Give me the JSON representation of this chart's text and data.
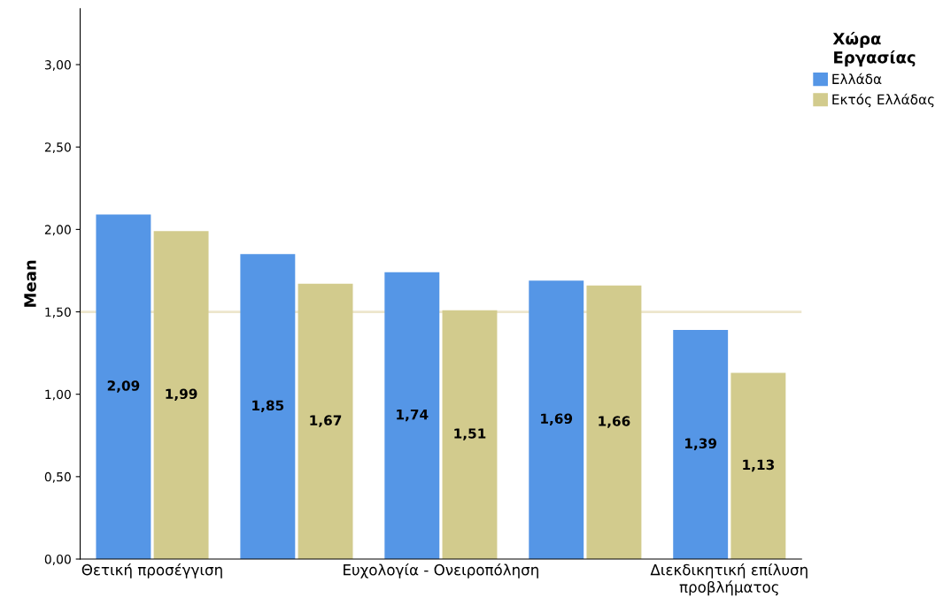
{
  "chart_data": {
    "type": "bar",
    "ylabel": "Mean",
    "legend_title": "Χώρα Εργασίας",
    "categories": [
      "Θετική προσέγγιση",
      null,
      "Ευχολογία - Ονειροπόληση",
      null,
      "Διεκδικητική επίλυση προβλήματος"
    ],
    "series": [
      {
        "name": "Ελλάδα",
        "color": "#5596e6",
        "values": [
          2.09,
          1.85,
          1.74,
          1.69,
          1.39
        ],
        "value_labels": [
          "2,09",
          "1,85",
          "1,74",
          "1,69",
          "1,39"
        ]
      },
      {
        "name": "Εκτός Ελλάδας",
        "color": "#d2cb8d",
        "values": [
          1.99,
          1.67,
          1.51,
          1.66,
          1.13
        ],
        "value_labels": [
          "1,99",
          "1,67",
          "1,51",
          "1,66",
          "1,13"
        ]
      }
    ],
    "ylim": [
      0,
      3.34
    ],
    "yticks": [
      {
        "value": 0,
        "label": "0,00"
      },
      {
        "value": 0.5,
        "label": "0,50"
      },
      {
        "value": 1,
        "label": "1,00"
      },
      {
        "value": 1.5,
        "label": "1,50"
      },
      {
        "value": 2,
        "label": "2,00"
      },
      {
        "value": 2.5,
        "label": "2,50"
      },
      {
        "value": 3,
        "label": "3,00"
      }
    ],
    "ref_lines": [
      {
        "axis": "y",
        "value": 1.5,
        "color": "#ede6cc"
      }
    ],
    "grid": false,
    "legend": "top right"
  }
}
